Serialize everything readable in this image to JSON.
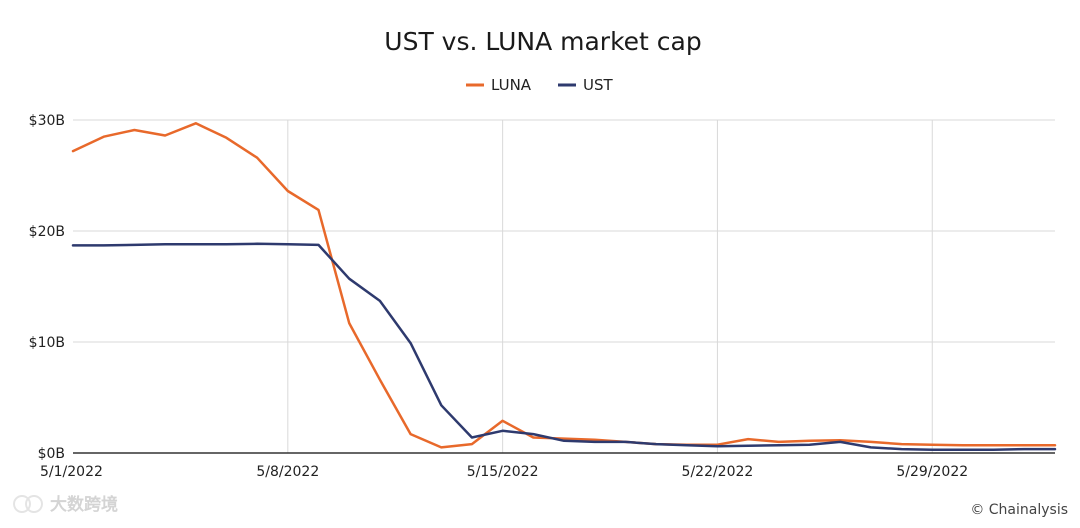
{
  "chart_data": {
    "type": "line",
    "title": "UST vs. LUNA market cap",
    "xlabel": "",
    "ylabel": "",
    "x_ticks": [
      "5/1/2022",
      "5/8/2022",
      "5/15/2022",
      "5/22/2022",
      "5/29/2022"
    ],
    "x": [
      "5/1/2022",
      "5/2/2022",
      "5/3/2022",
      "5/4/2022",
      "5/5/2022",
      "5/6/2022",
      "5/7/2022",
      "5/8/2022",
      "5/9/2022",
      "5/10/2022",
      "5/11/2022",
      "5/12/2022",
      "5/13/2022",
      "5/14/2022",
      "5/15/2022",
      "5/16/2022",
      "5/17/2022",
      "5/18/2022",
      "5/19/2022",
      "5/20/2022",
      "5/21/2022",
      "5/22/2022",
      "5/23/2022",
      "5/24/2022",
      "5/25/2022",
      "5/26/2022",
      "5/27/2022",
      "5/28/2022",
      "5/29/2022",
      "5/30/2022",
      "5/31/2022",
      "6/1/2022",
      "6/2/2022"
    ],
    "y_ticks": [
      {
        "value": 0,
        "label": "$0B"
      },
      {
        "value": 10,
        "label": "$10B"
      },
      {
        "value": 20,
        "label": "$20B"
      },
      {
        "value": 30,
        "label": "$30B"
      }
    ],
    "ylim": [
      0,
      30
    ],
    "grid": true,
    "legend_position": "top-center",
    "series": [
      {
        "name": "LUNA",
        "color": "#e8692b",
        "values": [
          27.2,
          28.5,
          29.1,
          28.6,
          29.7,
          28.4,
          26.6,
          23.6,
          21.9,
          11.7,
          6.6,
          1.7,
          0.5,
          0.8,
          2.9,
          1.4,
          1.3,
          1.2,
          1.0,
          0.8,
          0.75,
          0.75,
          1.25,
          1.0,
          1.1,
          1.15,
          1.0,
          0.8,
          0.75,
          0.7,
          0.7,
          0.7,
          0.7
        ]
      },
      {
        "name": "UST",
        "color": "#2e3a6e",
        "values": [
          18.7,
          18.7,
          18.75,
          18.8,
          18.8,
          18.8,
          18.85,
          18.8,
          18.75,
          15.7,
          13.7,
          9.9,
          4.3,
          1.4,
          2.0,
          1.7,
          1.1,
          1.0,
          1.0,
          0.8,
          0.7,
          0.6,
          0.65,
          0.7,
          0.75,
          1.0,
          0.5,
          0.35,
          0.3,
          0.3,
          0.3,
          0.35,
          0.35
        ]
      }
    ]
  },
  "credit": "© Chainalysis",
  "watermark": "大数跨境"
}
